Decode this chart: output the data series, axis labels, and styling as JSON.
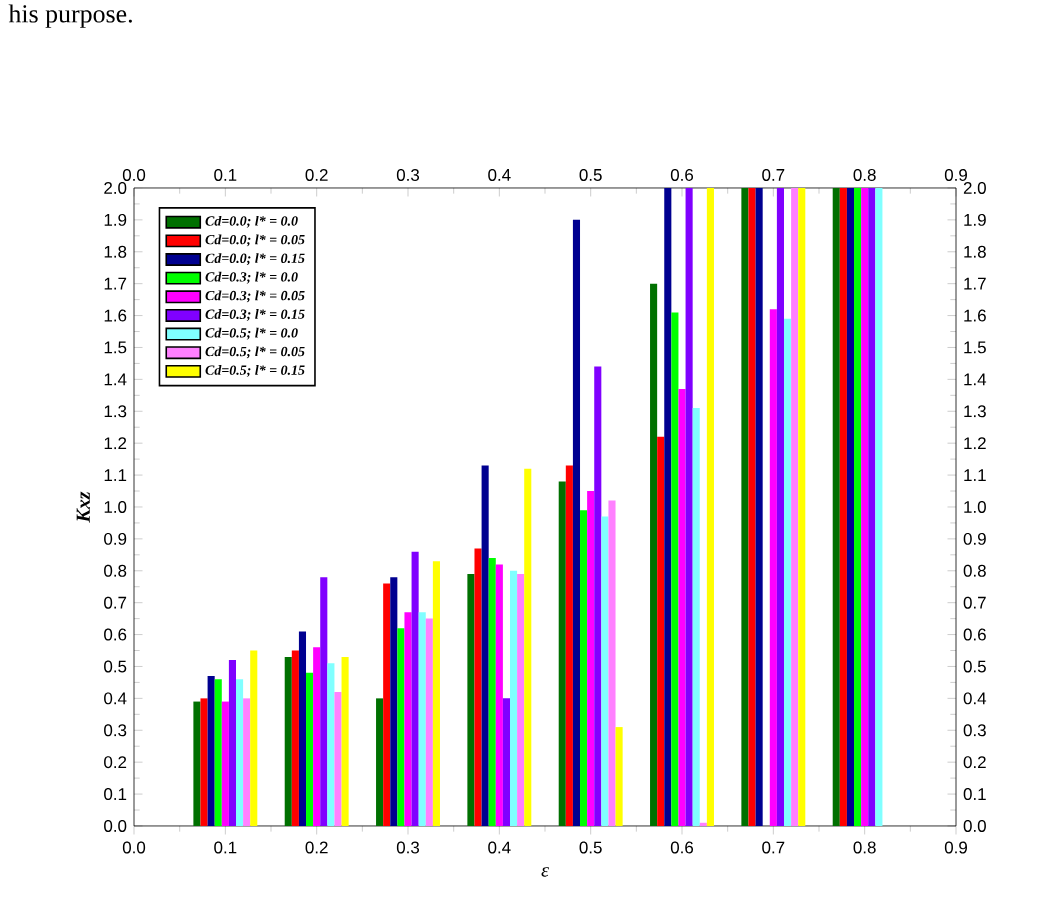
{
  "chart_data": {
    "type": "bar",
    "xlabel": "ε",
    "ylabel": "Kxz",
    "annotations": [
      "his purpose."
    ],
    "x": [
      0.1,
      0.2,
      0.3,
      0.4,
      0.5,
      0.6,
      0.7,
      0.8
    ],
    "series": [
      {
        "name": "Cd=0.0; l* = 0.0",
        "color": "#007000",
        "values": [
          0.39,
          0.53,
          0.4,
          0.79,
          1.08,
          1.7,
          2.0,
          2.0
        ]
      },
      {
        "name": "Cd=0.0; l* = 0.05",
        "color": "#ff0000",
        "values": [
          0.4,
          0.55,
          0.76,
          0.87,
          1.13,
          1.22,
          2.0,
          2.0
        ]
      },
      {
        "name": "Cd=0.0; l* = 0.15",
        "color": "#000090",
        "values": [
          0.47,
          0.61,
          0.78,
          1.13,
          1.9,
          2.0,
          2.0,
          2.0
        ]
      },
      {
        "name": "Cd=0.3; l* = 0.0",
        "color": "#00ff00",
        "values": [
          0.46,
          0.48,
          0.62,
          0.84,
          0.99,
          1.61,
          null,
          2.0
        ]
      },
      {
        "name": "Cd=0.3; l* = 0.05",
        "color": "#ff00ff",
        "values": [
          0.39,
          0.56,
          0.67,
          0.82,
          1.05,
          1.37,
          1.62,
          2.0
        ]
      },
      {
        "name": "Cd=0.3; l* = 0.15",
        "color": "#8000ff",
        "values": [
          0.52,
          0.78,
          0.86,
          0.4,
          1.44,
          2.0,
          2.0,
          2.0
        ]
      },
      {
        "name": "Cd=0.5; l* = 0.0",
        "color": "#80ffff",
        "values": [
          0.46,
          0.51,
          0.67,
          0.8,
          0.97,
          1.31,
          1.59,
          2.0
        ]
      },
      {
        "name": "Cd=0.5; l* = 0.05",
        "color": "#ff80ff",
        "values": [
          0.4,
          0.42,
          0.65,
          0.79,
          1.02,
          0.01,
          2.0,
          null
        ]
      },
      {
        "name": "Cd=0.5; l* = 0.15",
        "color": "#ffff00",
        "values": [
          0.55,
          0.53,
          0.83,
          1.12,
          0.31,
          2.0,
          2.0,
          null
        ]
      }
    ],
    "xlim": [
      0.0,
      0.9
    ],
    "xticks": [
      {
        "value": 0.0,
        "label": "0.0"
      },
      0.1,
      0.2,
      0.3,
      0.4,
      0.5,
      0.6,
      0.7,
      0.8,
      0.9
    ],
    "x2lim": [
      0.0,
      0.9
    ],
    "x2ticks": [
      {
        "value": 0.0,
        "label": "0.0"
      },
      0.1,
      0.2,
      0.3,
      0.4,
      0.5,
      0.6,
      0.7,
      0.8,
      0.9
    ],
    "ylim": [
      0.0,
      2.0
    ],
    "yticks": [
      {
        "value": 0.0,
        "label": "0.0"
      },
      0.1,
      0.2,
      0.3,
      0.4,
      0.5,
      0.6,
      0.7,
      0.8,
      0.9,
      {
        "value": 1.0,
        "label": "1.0"
      },
      1.1,
      1.2,
      1.3,
      1.4,
      1.5,
      1.6,
      1.7,
      1.8,
      1.9,
      {
        "value": 2.0,
        "label": "2.0"
      }
    ],
    "y2lim": [
      0.0,
      2.0
    ],
    "y2ticks": [
      {
        "value": 0.0,
        "label": "0.0"
      },
      0.1,
      0.2,
      0.3,
      0.4,
      0.5,
      0.6,
      0.7,
      0.8,
      0.9,
      {
        "value": 1.0,
        "label": "1.0"
      },
      1.1,
      1.2,
      1.3,
      1.4,
      1.5,
      1.6,
      1.7,
      1.8,
      1.9,
      {
        "value": 2.0,
        "label": "2.0"
      }
    ],
    "legend": "top left"
  }
}
